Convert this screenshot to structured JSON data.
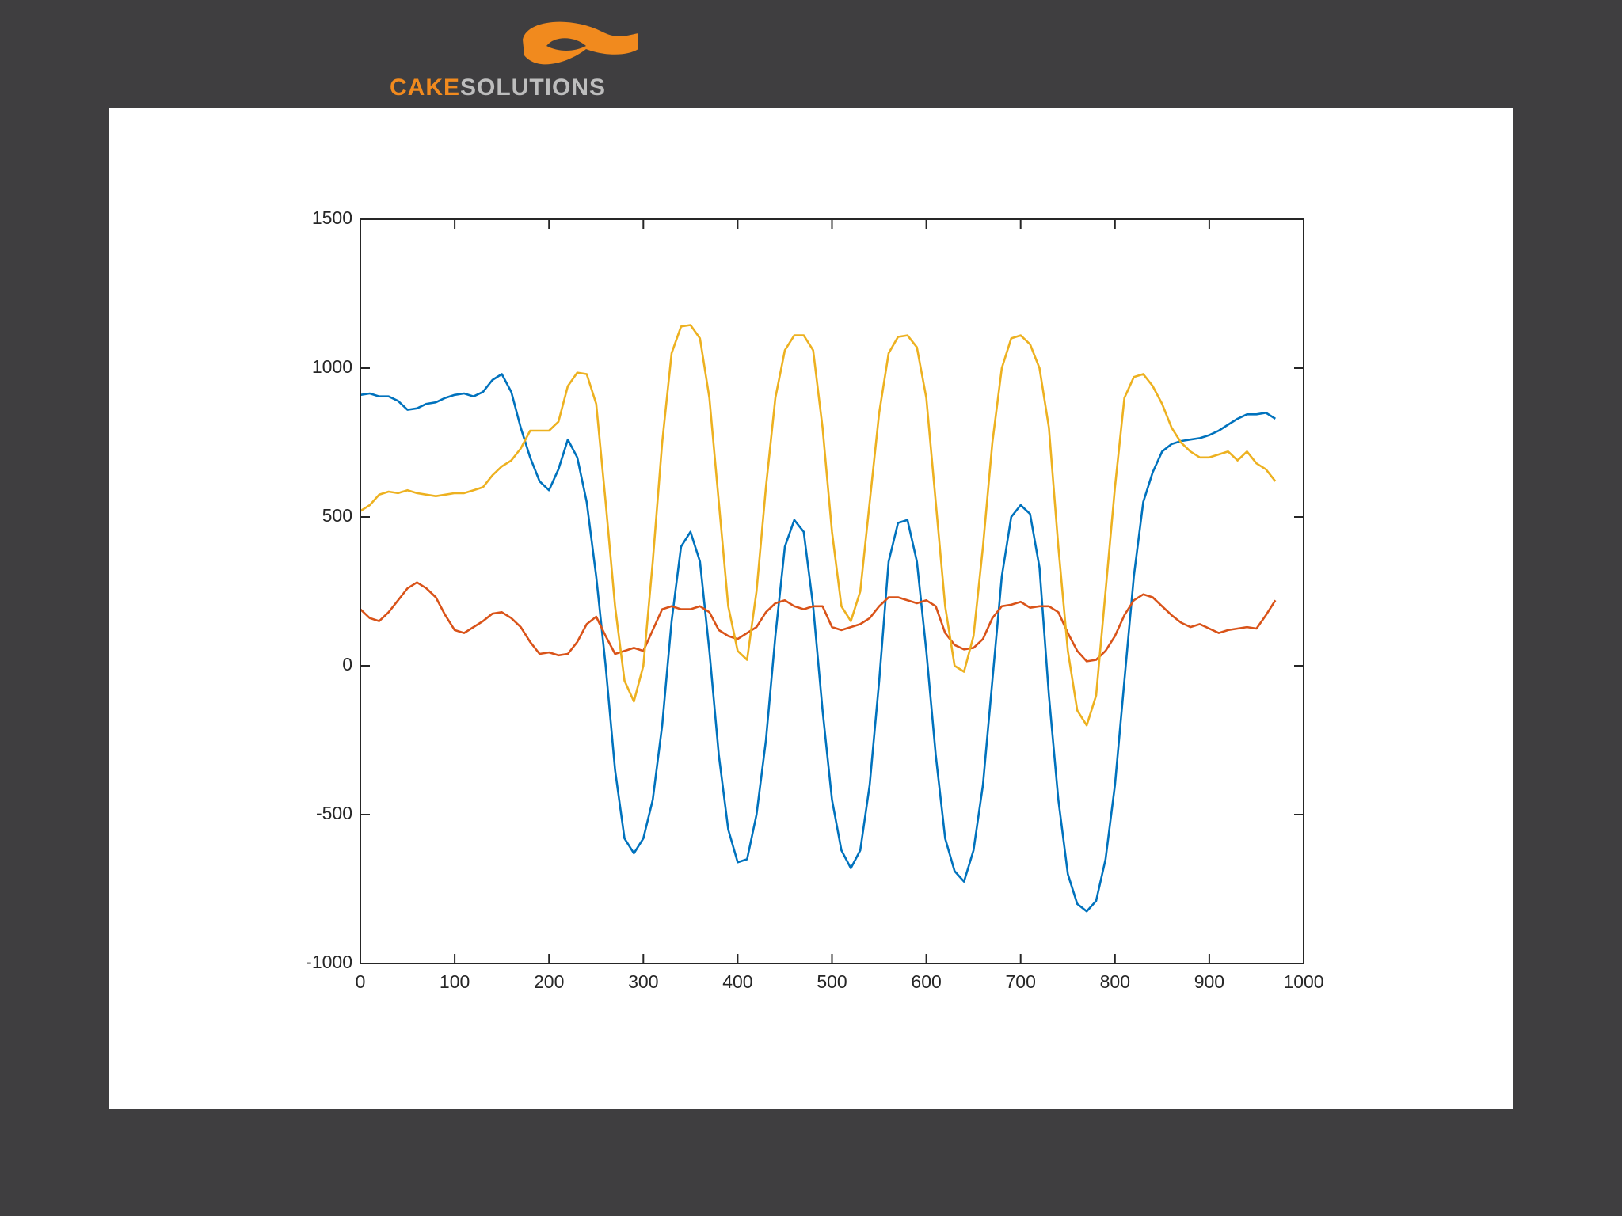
{
  "logo": {
    "part1": "CAKE",
    "part2": "SOLUTIONS"
  },
  "chart_data": {
    "type": "line",
    "x": [
      0,
      10,
      20,
      30,
      40,
      50,
      60,
      70,
      80,
      90,
      100,
      110,
      120,
      130,
      140,
      150,
      160,
      170,
      180,
      190,
      200,
      210,
      220,
      230,
      240,
      250,
      260,
      270,
      280,
      290,
      300,
      310,
      320,
      330,
      340,
      350,
      360,
      370,
      380,
      390,
      400,
      410,
      420,
      430,
      440,
      450,
      460,
      470,
      480,
      490,
      500,
      510,
      520,
      530,
      540,
      550,
      560,
      570,
      580,
      590,
      600,
      610,
      620,
      630,
      640,
      650,
      660,
      670,
      680,
      690,
      700,
      710,
      720,
      730,
      740,
      750,
      760,
      770,
      780,
      790,
      800,
      810,
      820,
      830,
      840,
      850,
      860,
      870,
      880,
      890,
      900,
      910,
      920,
      930,
      940,
      950,
      960,
      970
    ],
    "series": [
      {
        "color": "#0072bd",
        "values": [
          910,
          915,
          905,
          905,
          890,
          860,
          865,
          880,
          885,
          900,
          910,
          915,
          905,
          920,
          960,
          980,
          920,
          800,
          700,
          620,
          590,
          660,
          760,
          700,
          550,
          300,
          0,
          -350,
          -580,
          -630,
          -580,
          -450,
          -200,
          150,
          400,
          450,
          350,
          50,
          -300,
          -550,
          -660,
          -650,
          -500,
          -250,
          100,
          400,
          490,
          450,
          200,
          -150,
          -450,
          -620,
          -680,
          -620,
          -400,
          -50,
          350,
          480,
          490,
          350,
          50,
          -300,
          -580,
          -690,
          -725,
          -620,
          -400,
          -50,
          300,
          500,
          540,
          510,
          330,
          -100,
          -450,
          -700,
          -800,
          -825,
          -790,
          -650,
          -400,
          -50,
          300,
          550,
          650,
          720,
          745,
          755,
          760,
          765,
          775,
          790,
          810,
          830,
          845,
          845,
          850,
          830
        ]
      },
      {
        "color": "#d95319",
        "values": [
          190,
          160,
          150,
          180,
          220,
          260,
          280,
          260,
          230,
          170,
          120,
          110,
          130,
          150,
          175,
          180,
          160,
          130,
          80,
          40,
          45,
          35,
          40,
          80,
          140,
          165,
          100,
          40,
          50,
          60,
          50,
          120,
          190,
          200,
          190,
          190,
          200,
          180,
          120,
          100,
          90,
          110,
          130,
          180,
          210,
          220,
          200,
          190,
          200,
          200,
          130,
          120,
          130,
          140,
          160,
          200,
          230,
          230,
          220,
          210,
          220,
          200,
          110,
          70,
          55,
          60,
          90,
          160,
          200,
          205,
          215,
          195,
          200,
          200,
          180,
          110,
          50,
          15,
          20,
          50,
          100,
          170,
          220,
          240,
          230,
          200,
          170,
          145,
          130,
          140,
          125,
          110,
          120,
          125,
          130,
          125,
          170,
          220
        ]
      },
      {
        "color": "#edb120",
        "values": [
          520,
          540,
          575,
          585,
          580,
          590,
          580,
          575,
          570,
          575,
          580,
          580,
          590,
          600,
          640,
          670,
          690,
          730,
          790,
          790,
          790,
          820,
          940,
          985,
          980,
          880,
          550,
          200,
          -50,
          -120,
          0,
          350,
          750,
          1050,
          1140,
          1145,
          1100,
          900,
          550,
          200,
          50,
          20,
          250,
          600,
          900,
          1060,
          1110,
          1110,
          1060,
          800,
          450,
          200,
          150,
          250,
          550,
          850,
          1050,
          1105,
          1110,
          1070,
          900,
          550,
          200,
          0,
          -20,
          100,
          400,
          750,
          1000,
          1100,
          1110,
          1080,
          1000,
          800,
          400,
          50,
          -150,
          -200,
          -100,
          250,
          600,
          900,
          970,
          980,
          940,
          880,
          800,
          750,
          720,
          700,
          700,
          710,
          720,
          690,
          720,
          680,
          660,
          620
        ]
      }
    ],
    "xlim": [
      0,
      1000
    ],
    "xticks": [
      0,
      100,
      200,
      300,
      400,
      500,
      600,
      700,
      800,
      900,
      1000
    ],
    "ylim": [
      -1000,
      1500
    ],
    "yticks": [
      -1000,
      -500,
      0,
      500,
      1000,
      1500
    ],
    "grid": false
  }
}
